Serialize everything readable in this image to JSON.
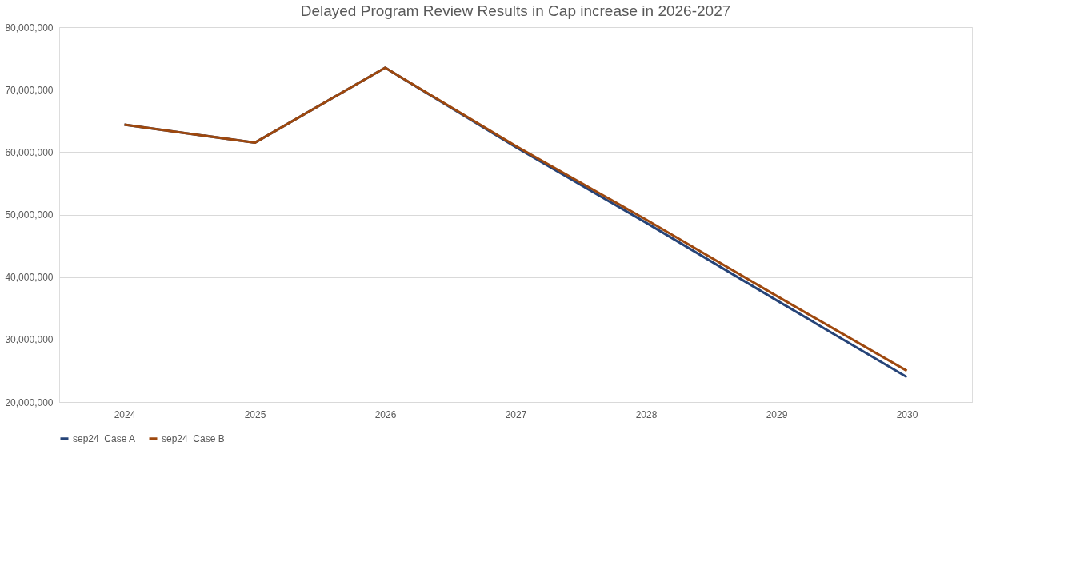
{
  "chart_data": {
    "type": "line",
    "title": "Delayed Program Review Results in Cap increase in 2026-2027",
    "categories": [
      "2024",
      "2025",
      "2026",
      "2027",
      "2028",
      "2029",
      "2030"
    ],
    "series": [
      {
        "name": "sep24_Case A",
        "color": "#264478",
        "values": [
          64400000,
          61500000,
          73500000,
          60800000,
          48700000,
          36300000,
          24000000
        ]
      },
      {
        "name": "sep24_Case B",
        "color": "#9e480e",
        "values": [
          64400000,
          61500000,
          73500000,
          61000000,
          49200000,
          37000000,
          25000000
        ]
      }
    ],
    "ylim": [
      20000000,
      80000000
    ],
    "yticks": [
      {
        "value": 20000000,
        "label": "20,000,000"
      },
      {
        "value": 30000000,
        "label": "30,000,000"
      },
      {
        "value": 40000000,
        "label": "40,000,000"
      },
      {
        "value": 50000000,
        "label": "50,000,000"
      },
      {
        "value": 60000000,
        "label": "60,000,000"
      },
      {
        "value": 70000000,
        "label": "70,000,000"
      },
      {
        "value": 80000000,
        "label": "80,000,000"
      }
    ],
    "grid": "y",
    "legend": "bottom",
    "marker": "none",
    "line_style": "solid"
  }
}
